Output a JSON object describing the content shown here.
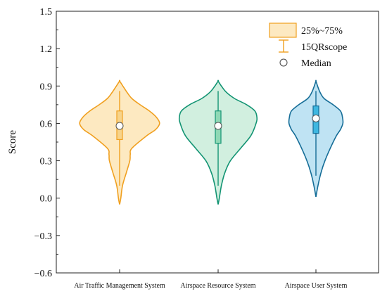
{
  "chart_data": {
    "type": "violin",
    "ylabel": "Score",
    "ylim": [
      -0.6,
      1.5
    ],
    "yticks": [
      -0.6,
      -0.3,
      0.0,
      0.3,
      0.6,
      0.9,
      1.2,
      1.5
    ],
    "ytick_labels": [
      "−0.6",
      "−0.3",
      "0.0",
      "0.3",
      "0.6",
      "0.9",
      "1.2",
      "1.5"
    ],
    "categories": [
      "Air Traffic Management System",
      "Airspace Resource System",
      "Airspace User System"
    ],
    "legend": {
      "placement": "top-right",
      "iqr_label": "25%~75%",
      "whisker_label": "15QRscope",
      "median_label": "Median"
    },
    "series": [
      {
        "category": "Air Traffic Management System",
        "fill": "#fde9c1",
        "stroke": "#f0a020",
        "box_fill": "#f7d38a",
        "q1": 0.47,
        "median": 0.58,
        "q3": 0.7,
        "whisker_low": 0.1,
        "whisker_high": 0.86,
        "density": [
          [
            -0.05,
            0.0
          ],
          [
            0.0,
            0.03
          ],
          [
            0.1,
            0.07
          ],
          [
            0.2,
            0.16
          ],
          [
            0.3,
            0.25
          ],
          [
            0.35,
            0.26
          ],
          [
            0.4,
            0.3
          ],
          [
            0.5,
            0.66
          ],
          [
            0.55,
            0.88
          ],
          [
            0.6,
            0.98
          ],
          [
            0.65,
            0.9
          ],
          [
            0.7,
            0.73
          ],
          [
            0.75,
            0.5
          ],
          [
            0.8,
            0.3
          ],
          [
            0.85,
            0.18
          ],
          [
            0.9,
            0.08
          ],
          [
            0.94,
            0.0
          ]
        ]
      },
      {
        "category": "Airspace Resource System",
        "fill": "#d1efdf",
        "stroke": "#139473",
        "box_fill": "#8fd8b5",
        "q1": 0.44,
        "median": 0.58,
        "q3": 0.7,
        "whisker_low": 0.1,
        "whisker_high": 0.86,
        "density": [
          [
            -0.05,
            0.0
          ],
          [
            0.0,
            0.03
          ],
          [
            0.1,
            0.08
          ],
          [
            0.2,
            0.16
          ],
          [
            0.3,
            0.3
          ],
          [
            0.4,
            0.55
          ],
          [
            0.5,
            0.8
          ],
          [
            0.6,
            0.93
          ],
          [
            0.65,
            0.95
          ],
          [
            0.7,
            0.9
          ],
          [
            0.75,
            0.7
          ],
          [
            0.8,
            0.4
          ],
          [
            0.85,
            0.2
          ],
          [
            0.9,
            0.08
          ],
          [
            0.94,
            0.0
          ]
        ]
      },
      {
        "category": "Airspace User System",
        "fill": "#bfe3f3",
        "stroke": "#156d97",
        "box_fill": "#3eb7e0",
        "q1": 0.52,
        "median": 0.64,
        "q3": 0.74,
        "whisker_low": 0.18,
        "whisker_high": 0.86,
        "density": [
          [
            0.01,
            0.0
          ],
          [
            0.1,
            0.05
          ],
          [
            0.2,
            0.12
          ],
          [
            0.3,
            0.22
          ],
          [
            0.4,
            0.35
          ],
          [
            0.5,
            0.5
          ],
          [
            0.55,
            0.6
          ],
          [
            0.6,
            0.66
          ],
          [
            0.65,
            0.65
          ],
          [
            0.7,
            0.6
          ],
          [
            0.75,
            0.42
          ],
          [
            0.8,
            0.2
          ],
          [
            0.85,
            0.1
          ],
          [
            0.9,
            0.04
          ],
          [
            0.94,
            0.0
          ]
        ]
      }
    ]
  }
}
